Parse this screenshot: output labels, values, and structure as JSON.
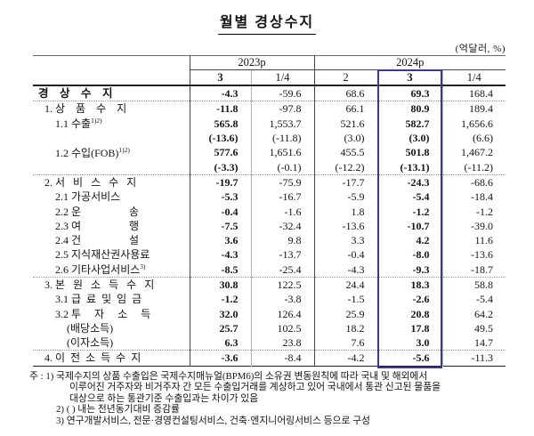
{
  "page": {
    "title": "월별 경상수지",
    "unit_label": "(억달러, %)"
  },
  "accent_color": "#39398f",
  "table": {
    "col_groups": [
      {
        "label": "2023p",
        "span": 2
      },
      {
        "label": "2024p",
        "span": 3
      }
    ],
    "col_headers": [
      "3",
      "1/4",
      "2",
      "3",
      "1/4"
    ],
    "highlighted_column": "2024p 3",
    "rows": [
      {
        "label": "경    상    수    지",
        "sup": "",
        "indent": 0,
        "label_bold": true,
        "divider_above": false,
        "values": [
          "-4.3",
          "-59.6",
          "68.6",
          "69.3",
          "168.4"
        ]
      },
      {
        "label": "1. 상    품    수    지",
        "sup": "",
        "indent": 1,
        "label_bold": false,
        "divider_above": true,
        "values": [
          "-11.8",
          "-97.8",
          "66.1",
          "80.9",
          "189.4"
        ]
      },
      {
        "label": "1.1 수출",
        "sup": "1)2)",
        "indent": 2,
        "label_bold": false,
        "divider_above": false,
        "values": [
          "565.8",
          "1,553.7",
          "521.6",
          "582.7",
          "1,656.6"
        ]
      },
      {
        "label": "",
        "sup": "",
        "indent": 2,
        "label_bold": false,
        "divider_above": false,
        "values": [
          "(-13.6)",
          "(-11.8)",
          "(3.0)",
          "(3.0)",
          "(6.6)"
        ]
      },
      {
        "label": "1.2 수입(FOB)",
        "sup": "1)2)",
        "indent": 2,
        "label_bold": false,
        "divider_above": false,
        "values": [
          "577.6",
          "1,651.6",
          "455.5",
          "501.8",
          "1,467.2"
        ]
      },
      {
        "label": "",
        "sup": "",
        "indent": 2,
        "label_bold": false,
        "divider_above": false,
        "values": [
          "(-3.3)",
          "(-0.1)",
          "(-12.2)",
          "(-13.1)",
          "(-11.2)"
        ]
      },
      {
        "label": "2. 서   비   스   수   지",
        "sup": "",
        "indent": 1,
        "label_bold": false,
        "divider_above": true,
        "values": [
          "-19.7",
          "-75.9",
          "-17.7",
          "-24.3",
          "-68.6"
        ]
      },
      {
        "label": "2.1 가공서비스",
        "sup": "",
        "indent": 2,
        "label_bold": false,
        "divider_above": false,
        "values": [
          "-5.3",
          "-16.7",
          "-5.9",
          "-5.4",
          "-18.4"
        ]
      },
      {
        "label": "2.2 운                  송",
        "sup": "",
        "indent": 2,
        "label_bold": false,
        "divider_above": false,
        "values": [
          "-0.4",
          "-1.6",
          "1.8",
          "-1.2",
          "-1.2"
        ]
      },
      {
        "label": "2.3 여                  행",
        "sup": "",
        "indent": 2,
        "label_bold": false,
        "divider_above": false,
        "values": [
          "-7.5",
          "-32.4",
          "-13.6",
          "-10.7",
          "-39.0"
        ]
      },
      {
        "label": "2.4 건                  설",
        "sup": "",
        "indent": 2,
        "label_bold": false,
        "divider_above": false,
        "values": [
          "3.6",
          "9.8",
          "3.3",
          "4.2",
          "11.6"
        ]
      },
      {
        "label": "2.5 지식재산권사용료",
        "sup": "",
        "indent": 2,
        "label_bold": false,
        "divider_above": false,
        "values": [
          "-4.3",
          "-13.7",
          "-0.4",
          "-8.0",
          "-13.6"
        ]
      },
      {
        "label": "2.6 기타사업서비스",
        "sup": "3)",
        "indent": 2,
        "label_bold": false,
        "divider_above": false,
        "values": [
          "-8.5",
          "-25.4",
          "-4.3",
          "-9.3",
          "-18.7"
        ]
      },
      {
        "label": "3. 본   원   소   득   수   지",
        "sup": "",
        "indent": 1,
        "label_bold": false,
        "divider_above": true,
        "values": [
          "30.8",
          "122.5",
          "24.4",
          "18.3",
          "58.8"
        ]
      },
      {
        "label": "3.1 급  료  및  임  금",
        "sup": "",
        "indent": 2,
        "label_bold": false,
        "divider_above": false,
        "values": [
          "-1.2",
          "-3.8",
          "-1.5",
          "-2.6",
          "-5.4"
        ]
      },
      {
        "label": "3.2 투     자     소     득",
        "sup": "",
        "indent": 2,
        "label_bold": false,
        "divider_above": false,
        "values": [
          "32.0",
          "126.4",
          "25.9",
          "20.8",
          "64.2"
        ]
      },
      {
        "label": "(배당소득)",
        "sup": "",
        "indent": 3,
        "label_bold": false,
        "divider_above": false,
        "values": [
          "25.7",
          "102.5",
          "18.2",
          "17.8",
          "49.5"
        ]
      },
      {
        "label": "(이자소득)",
        "sup": "",
        "indent": 3,
        "label_bold": false,
        "divider_above": false,
        "values": [
          "6.3",
          "23.8",
          "7.6",
          "3.0",
          "14.7"
        ]
      },
      {
        "label": "4. 이  전  소  득  수  지",
        "sup": "",
        "indent": 1,
        "label_bold": false,
        "divider_above": true,
        "values": [
          "-3.6",
          "-8.4",
          "-4.2",
          "-5.6",
          "-11.3"
        ]
      }
    ]
  },
  "footnotes": {
    "lines": [
      "주 : 1) 국제수지의 상품 수출입은 국제수지매뉴얼(BPM6)의 소유권 변동원칙에 따라 국내 및 해외에서",
      "이루어진 거주자와 비거주자 간 모든 수출입거래를 계상하고 있어 국내에서 통관 신고된 물품을",
      "대상으로 하는 통관기준 수출입과는 차이가 있음",
      "2) (  ) 내는 전년동기대비 증감률",
      "3) 연구개발서비스, 전문·경영컨설팅서비스, 건축·엔지니어링서비스 등으로 구성"
    ]
  }
}
